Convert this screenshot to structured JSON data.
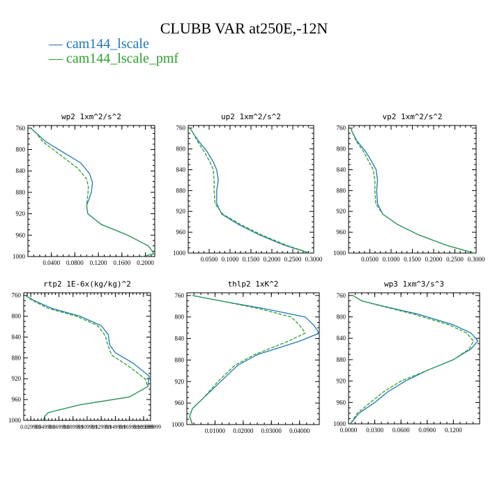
{
  "title": "CLUBB VAR at250E,-12N",
  "legend": [
    {
      "label": "cam144_lscale",
      "color": "#1f77b4"
    },
    {
      "label": "cam144_lscale_pmf",
      "color": "#2ca02c"
    }
  ],
  "chart_data": [
    {
      "type": "line",
      "title": "wp2   1xm^2/s^2",
      "xlim": [
        0.0,
        0.216
      ],
      "ylim": [
        1000,
        755
      ],
      "xticks": [
        "0.0400",
        "0.0800",
        "0.1200",
        "0.1600",
        "0.2000"
      ],
      "xtick_values": [
        0.04,
        0.08,
        0.12,
        0.16,
        0.2
      ],
      "yticks": [
        "760",
        "800",
        "840",
        "880",
        "920",
        "960",
        "1000"
      ],
      "ytick_values": [
        760,
        800,
        840,
        880,
        920,
        960,
        1000
      ],
      "series": [
        {
          "name": "cam144_lscale",
          "x": [
            0.005,
            0.015,
            0.03,
            0.06,
            0.09,
            0.105,
            0.11,
            0.108,
            0.1,
            0.102,
            0.125,
            0.17,
            0.205,
            0.212,
            0.214,
            0.195
          ],
          "y": [
            760,
            770,
            785,
            805,
            825,
            845,
            862,
            880,
            905,
            920,
            940,
            960,
            980,
            990,
            995,
            1000
          ]
        },
        {
          "name": "cam144_lscale_pmf",
          "x": [
            0.005,
            0.015,
            0.025,
            0.055,
            0.085,
            0.1,
            0.103,
            0.102,
            0.1,
            0.102,
            0.125,
            0.17,
            0.205,
            0.212,
            0.214,
            0.195
          ],
          "y": [
            760,
            770,
            785,
            810,
            835,
            855,
            870,
            885,
            905,
            920,
            940,
            960,
            980,
            990,
            995,
            1000
          ]
        }
      ]
    },
    {
      "type": "line",
      "title": "up2   1xm^2/s^2",
      "xlim": [
        0.0,
        0.3
      ],
      "ylim": [
        1000,
        755
      ],
      "xticks": [
        "0.0500",
        "0.1000",
        "0.1500",
        "0.2000",
        "0.2500",
        "0.3000"
      ],
      "xtick_values": [
        0.05,
        0.1,
        0.15,
        0.2,
        0.25,
        0.3
      ],
      "yticks": [
        "760",
        "800",
        "840",
        "880",
        "920",
        "960",
        "1000"
      ],
      "ytick_values": [
        760,
        800,
        840,
        880,
        920,
        960,
        1000
      ],
      "series": [
        {
          "name": "cam144_lscale",
          "x": [
            0.004,
            0.012,
            0.025,
            0.045,
            0.06,
            0.068,
            0.072,
            0.068,
            0.068,
            0.08,
            0.12,
            0.17,
            0.23,
            0.29
          ],
          "y": [
            760,
            770,
            785,
            805,
            825,
            840,
            860,
            880,
            905,
            925,
            945,
            965,
            985,
            1000
          ]
        },
        {
          "name": "cam144_lscale_pmf",
          "x": [
            0.004,
            0.012,
            0.022,
            0.038,
            0.052,
            0.06,
            0.062,
            0.062,
            0.064,
            0.082,
            0.125,
            0.175,
            0.235,
            0.29
          ],
          "y": [
            760,
            770,
            785,
            805,
            825,
            840,
            860,
            880,
            905,
            925,
            945,
            965,
            985,
            1000
          ]
        }
      ]
    },
    {
      "type": "line",
      "title": "vp2   1xm^2/s^2",
      "xlim": [
        0.0,
        0.3
      ],
      "ylim": [
        1000,
        755
      ],
      "xticks": [
        "0.0500",
        "0.1000",
        "0.1500",
        "0.2000",
        "0.2500",
        "0.3000"
      ],
      "xtick_values": [
        0.05,
        0.1,
        0.15,
        0.2,
        0.25,
        0.3
      ],
      "yticks": [
        "760",
        "800",
        "840",
        "880",
        "920",
        "960",
        "1000"
      ],
      "ytick_values": [
        760,
        800,
        840,
        880,
        920,
        960,
        1000
      ],
      "series": [
        {
          "name": "cam144_lscale",
          "x": [
            0.005,
            0.01,
            0.02,
            0.04,
            0.055,
            0.065,
            0.068,
            0.066,
            0.068,
            0.08,
            0.115,
            0.165,
            0.23,
            0.295
          ],
          "y": [
            760,
            770,
            785,
            805,
            825,
            840,
            860,
            880,
            905,
            925,
            945,
            965,
            985,
            1000
          ]
        },
        {
          "name": "cam144_lscale_pmf",
          "x": [
            0.005,
            0.01,
            0.018,
            0.035,
            0.048,
            0.058,
            0.062,
            0.062,
            0.064,
            0.08,
            0.115,
            0.165,
            0.23,
            0.295
          ],
          "y": [
            760,
            770,
            785,
            805,
            825,
            840,
            860,
            880,
            905,
            925,
            945,
            965,
            985,
            1000
          ]
        }
      ]
    },
    {
      "type": "line",
      "title": "rtp2   1E-6x(kg/kg)^2",
      "xlim": [
        0.02,
        0.2
      ],
      "ylim": [
        1000,
        755
      ],
      "xticks": [
        "0.029999",
        "0.049999",
        "0.069999",
        "0.089999",
        "0.109999",
        "0.129999",
        "0.149999",
        "0.169999",
        "0.189999",
        "0.199999"
      ],
      "xtick_values": [
        0.03,
        0.05,
        0.07,
        0.09,
        0.11,
        0.13,
        0.15,
        0.17,
        0.19,
        0.2
      ],
      "yticks": [
        "760",
        "800",
        "840",
        "880",
        "920",
        "960",
        "1000"
      ],
      "ytick_values": [
        760,
        800,
        840,
        880,
        920,
        960,
        1000
      ],
      "series": [
        {
          "name": "cam144_lscale",
          "x": [
            0.022,
            0.035,
            0.06,
            0.1,
            0.13,
            0.14,
            0.142,
            0.15,
            0.175,
            0.198,
            0.196,
            0.17,
            0.1,
            0.055,
            0.05,
            0.048
          ],
          "y": [
            760,
            770,
            785,
            800,
            818,
            835,
            855,
            870,
            890,
            915,
            935,
            955,
            970,
            985,
            992,
            1000
          ]
        },
        {
          "name": "cam144_lscale_pmf",
          "x": [
            0.022,
            0.033,
            0.055,
            0.095,
            0.125,
            0.136,
            0.14,
            0.145,
            0.168,
            0.192,
            0.196,
            0.17,
            0.1,
            0.055,
            0.05,
            0.048
          ],
          "y": [
            760,
            770,
            785,
            800,
            818,
            838,
            858,
            875,
            895,
            920,
            935,
            955,
            970,
            985,
            992,
            1000
          ]
        }
      ]
    },
    {
      "type": "line",
      "title": "thlp2   1xK^2",
      "xlim": [
        0.0,
        0.047
      ],
      "ylim": [
        1000,
        755
      ],
      "xticks": [
        "0.01000",
        "0.02000",
        "0.03000",
        "0.04000"
      ],
      "xtick_values": [
        0.01,
        0.02,
        0.03,
        0.04
      ],
      "yticks": [
        "760",
        "800",
        "840",
        "880",
        "920",
        "960",
        "1000"
      ],
      "ytick_values": [
        760,
        800,
        840,
        880,
        920,
        960,
        1000
      ],
      "series": [
        {
          "name": "cam144_lscale",
          "x": [
            0.002,
            0.012,
            0.028,
            0.042,
            0.045,
            0.047,
            0.04,
            0.025,
            0.018,
            0.012,
            0.006,
            0.002,
            0.001,
            0.002
          ],
          "y": [
            760,
            770,
            785,
            800,
            815,
            830,
            845,
            870,
            890,
            920,
            950,
            970,
            985,
            1000
          ]
        },
        {
          "name": "cam144_lscale_pmf",
          "x": [
            0.002,
            0.012,
            0.026,
            0.037,
            0.04,
            0.042,
            0.036,
            0.024,
            0.017,
            0.011,
            0.006,
            0.002,
            0.001,
            0.002
          ],
          "y": [
            760,
            770,
            785,
            800,
            815,
            830,
            845,
            870,
            890,
            920,
            950,
            970,
            985,
            1000
          ]
        }
      ]
    },
    {
      "type": "line",
      "title": "wp3   1xm^3/s^3",
      "xlim": [
        0.0,
        0.15
      ],
      "ylim": [
        1000,
        755
      ],
      "xticks": [
        "0.0000",
        "0.0300",
        "0.0600",
        "0.0900",
        "0.1200"
      ],
      "xtick_values": [
        0.0,
        0.03,
        0.06,
        0.09,
        0.12
      ],
      "yticks": [
        "760",
        "800",
        "840",
        "880",
        "920",
        "960",
        "1000"
      ],
      "ytick_values": [
        760,
        800,
        840,
        880,
        920,
        960,
        1000
      ],
      "series": [
        {
          "name": "cam144_lscale",
          "x": [
            0.005,
            0.015,
            0.04,
            0.08,
            0.12,
            0.14,
            0.148,
            0.14,
            0.12,
            0.09,
            0.065,
            0.045,
            0.03,
            0.012,
            0.002
          ],
          "y": [
            760,
            770,
            780,
            795,
            815,
            830,
            845,
            860,
            880,
            900,
            920,
            940,
            960,
            980,
            1000
          ]
        },
        {
          "name": "cam144_lscale_pmf",
          "x": [
            0.005,
            0.015,
            0.038,
            0.075,
            0.115,
            0.135,
            0.143,
            0.138,
            0.12,
            0.09,
            0.06,
            0.04,
            0.025,
            0.01,
            0.002
          ],
          "y": [
            760,
            770,
            780,
            795,
            815,
            830,
            845,
            860,
            880,
            900,
            920,
            940,
            960,
            980,
            1000
          ]
        }
      ]
    }
  ]
}
